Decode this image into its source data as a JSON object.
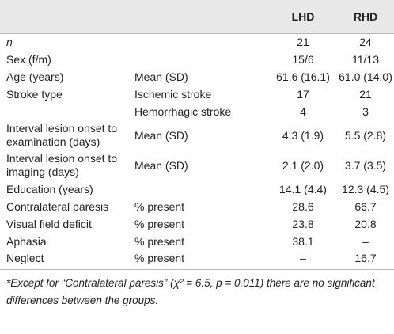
{
  "table": {
    "columns": [
      "LHD",
      "RHD"
    ],
    "rows": [
      {
        "label": "n",
        "lhd": "21",
        "rhd": "24"
      },
      {
        "label": "Sex (f/m)",
        "lhd": "15/6",
        "rhd": "11/13"
      },
      {
        "label": "Age (years)",
        "measure": "Mean (SD)",
        "lhd": "61.6 (16.1)",
        "rhd": "61.0 (14.0)"
      },
      {
        "label": "Stroke type",
        "measure": "Ischemic stroke",
        "lhd": "17",
        "rhd": "21"
      },
      {
        "measure": "Hemorrhagic stroke",
        "lhd": "4",
        "rhd": "3"
      },
      {
        "label": "Interval lesion onset to examination (days)",
        "measure": "Mean (SD)",
        "lhd": "4.3 (1.9)",
        "rhd": "5.5 (2.8)"
      },
      {
        "label": "Interval lesion onset to imaging (days)",
        "measure": "Mean (SD)",
        "lhd": "2.1 (2.0)",
        "rhd": "3.7 (3.5)"
      },
      {
        "label": "Education (years)",
        "lhd": "14.1 (4.4)",
        "rhd": "12.3 (4.5)"
      },
      {
        "label": "Contralateral paresis",
        "measure": "% present",
        "lhd": "28.6",
        "rhd": "66.7"
      },
      {
        "label": "Visual field deficit",
        "measure": "% present",
        "lhd": "23.8",
        "rhd": "20.8"
      },
      {
        "label": "Aphasia",
        "measure": "% present",
        "lhd": "38.1",
        "rhd": "–"
      },
      {
        "label": "Neglect",
        "measure": "% present",
        "lhd": "–",
        "rhd": "16.7"
      }
    ],
    "footnote": "*Except for “Contralateral paresis” (χ² = 6.5, p = 0.011) there are no significant differences between the groups."
  }
}
